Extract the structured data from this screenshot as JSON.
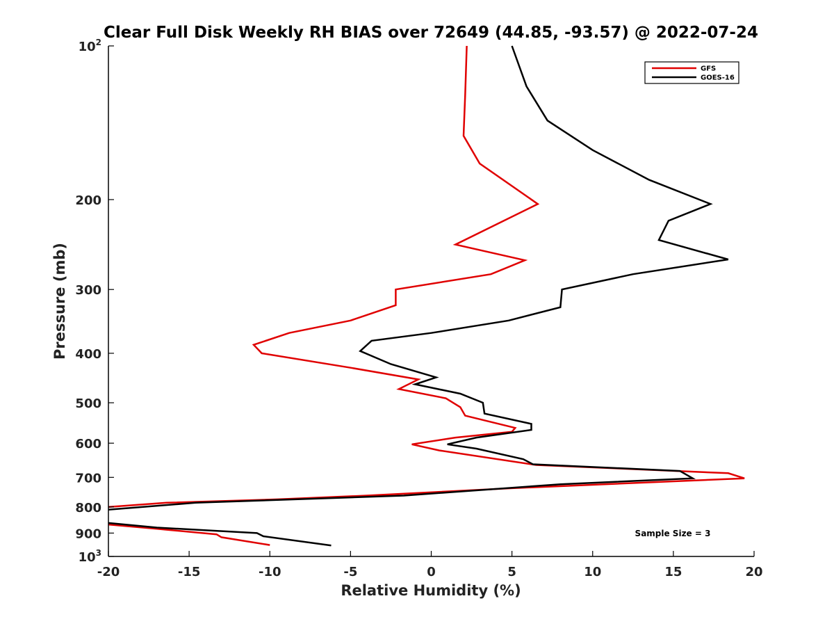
{
  "chart_data": {
    "type": "line",
    "title": "Clear Full Disk Weekly RH BIAS over 72649 (44.85, -93.57) @ 2022-07-24",
    "xlabel": "Relative Humidity (%)",
    "ylabel": "Pressure (mb)",
    "xlim": [
      -20,
      20
    ],
    "ylim": [
      100,
      1000
    ],
    "y_scale": "log",
    "y_reversed": true,
    "grid": false,
    "legend_position": "top-right",
    "x_ticks": [
      -20,
      -15,
      -10,
      -5,
      0,
      5,
      10,
      15,
      20
    ],
    "x_tick_labels": [
      "-20",
      "-15",
      "-10",
      "-5",
      "0",
      "5",
      "10",
      "15",
      "20"
    ],
    "y_ticks": [
      100,
      200,
      300,
      400,
      500,
      600,
      700,
      800,
      900,
      1000
    ],
    "y_tick_labels": [
      {
        "value": 100,
        "base": "10",
        "exp": "2"
      },
      {
        "value": 200,
        "base": "200",
        "exp": ""
      },
      {
        "value": 300,
        "base": "300",
        "exp": ""
      },
      {
        "value": 400,
        "base": "400",
        "exp": ""
      },
      {
        "value": 500,
        "base": "500",
        "exp": ""
      },
      {
        "value": 600,
        "base": "600",
        "exp": ""
      },
      {
        "value": 700,
        "base": "700",
        "exp": ""
      },
      {
        "value": 800,
        "base": "800",
        "exp": ""
      },
      {
        "value": 900,
        "base": "900",
        "exp": ""
      },
      {
        "value": 1000,
        "base": "10",
        "exp": "3"
      }
    ],
    "annotation": "Sample Size = 3",
    "series": [
      {
        "name": "GFS",
        "color": "#e00000",
        "segments": [
          [
            [
              2.2,
              100
            ],
            [
              2.1,
              125
            ],
            [
              2.0,
              150
            ],
            [
              3.0,
              170
            ],
            [
              6.6,
              204
            ],
            [
              1.5,
              245
            ],
            [
              5.8,
              263
            ],
            [
              3.7,
              280
            ],
            [
              -2.2,
              300
            ],
            [
              -2.2,
              322
            ],
            [
              -5.0,
              345
            ],
            [
              -8.8,
              365
            ],
            [
              -11.0,
              385
            ],
            [
              -10.5,
              400
            ],
            [
              -5.0,
              427
            ],
            [
              -0.8,
              450
            ],
            [
              -2.0,
              470
            ],
            [
              0.9,
              490
            ],
            [
              1.8,
              510
            ],
            [
              2.1,
              530
            ],
            [
              5.2,
              560
            ],
            [
              5.0,
              570
            ],
            [
              1.5,
              585
            ],
            [
              -1.2,
              603
            ],
            [
              0.5,
              620
            ],
            [
              6.5,
              662
            ],
            [
              18.4,
              687
            ],
            [
              19.4,
              703
            ],
            [
              5.0,
              735
            ],
            [
              -4.0,
              760
            ],
            [
              -9.5,
              773
            ],
            [
              -16.4,
              785
            ],
            [
              -20.0,
              800
            ]
          ],
          [
            [
              -20.0,
              866
            ],
            [
              -17.0,
              883
            ],
            [
              -13.3,
              905
            ],
            [
              -13.0,
              917
            ],
            [
              -10.0,
              950
            ]
          ]
        ]
      },
      {
        "name": "GOES-16",
        "color": "#000000",
        "segments": [
          [
            [
              5.0,
              100
            ],
            [
              5.9,
              120
            ],
            [
              7.2,
              140
            ],
            [
              10.0,
              160
            ],
            [
              13.5,
              183
            ],
            [
              17.3,
              204
            ],
            [
              14.7,
              220
            ],
            [
              14.1,
              240
            ],
            [
              18.4,
              262
            ],
            [
              12.5,
              280
            ],
            [
              8.1,
              300
            ],
            [
              8.0,
              325
            ],
            [
              4.8,
              345
            ],
            [
              0.0,
              365
            ],
            [
              -3.7,
              378
            ],
            [
              -4.4,
              396
            ],
            [
              -2.5,
              420
            ],
            [
              0.3,
              446
            ],
            [
              -1.0,
              460
            ],
            [
              1.8,
              480
            ],
            [
              3.2,
              500
            ],
            [
              3.3,
              525
            ],
            [
              6.2,
              550
            ],
            [
              6.2,
              565
            ],
            [
              2.8,
              585
            ],
            [
              1.0,
              603
            ],
            [
              2.8,
              615
            ],
            [
              5.7,
              645
            ],
            [
              6.3,
              660
            ],
            [
              15.4,
              680
            ],
            [
              16.2,
              703
            ],
            [
              8.0,
              722
            ],
            [
              -1.7,
              760
            ],
            [
              -14.6,
              785
            ],
            [
              -20.0,
              810
            ]
          ],
          [
            [
              -20.0,
              860
            ],
            [
              -17.0,
              878
            ],
            [
              -10.8,
              900
            ],
            [
              -10.4,
              913
            ],
            [
              -6.2,
              952
            ]
          ]
        ]
      }
    ]
  }
}
